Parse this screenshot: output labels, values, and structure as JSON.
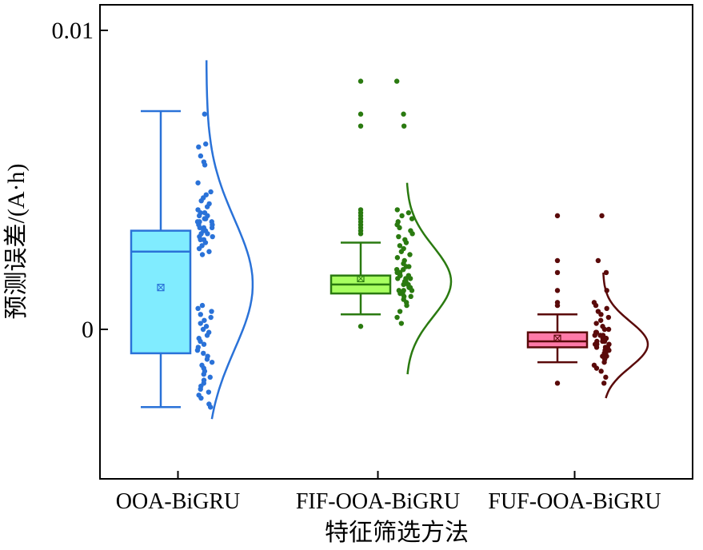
{
  "chart_data": {
    "type": "box",
    "xlabel": "特征筛选方法",
    "ylabel": "预测误差/(A·h)",
    "ylim": [
      -0.005,
      0.011
    ],
    "yticks": [
      {
        "value": 0.01,
        "label": "0.01"
      },
      {
        "value": 0,
        "label": "0"
      }
    ],
    "grid": false,
    "legend": "none",
    "categories": [
      "OOA-BiGRU",
      "FIF-OOA-BiGRU",
      "FUF-OOA-BiGRU"
    ],
    "series": [
      {
        "category": "OOA-BiGRU",
        "box_fill": "#80ecff",
        "line_color": "#2a72d8",
        "whisker_low": -0.0026,
        "q1": -0.0008,
        "median": 0.0026,
        "q3": 0.0033,
        "whisker_high": 0.0073,
        "mean": 0.0014,
        "outliers": [],
        "density_range": [
          -0.003,
          0.009
        ],
        "density_center": 0.0015,
        "points": [
          0.0072,
          0.0062,
          0.0061,
          0.0058,
          0.0056,
          0.0055,
          0.0049,
          0.0046,
          0.0045,
          0.0044,
          0.0043,
          0.0042,
          0.0041,
          0.004,
          0.0039,
          0.0039,
          0.0038,
          0.0038,
          0.0037,
          0.0037,
          0.0036,
          0.0036,
          0.0036,
          0.0035,
          0.0035,
          0.0034,
          0.0034,
          0.0034,
          0.0033,
          0.0033,
          0.0032,
          0.0032,
          0.0031,
          0.0031,
          0.003,
          0.003,
          0.0029,
          0.0028,
          0.0027,
          0.0026,
          0.0025,
          0.0008,
          0.0007,
          0.0006,
          0.0005,
          0.0004,
          0.0003,
          0.0002,
          0.0001,
          0.0,
          -0.0001,
          -0.0002,
          -0.0003,
          -0.0004,
          -0.0005,
          -0.0006,
          -0.0007,
          -0.0008,
          -0.0009,
          -0.001,
          -0.0011,
          -0.0012,
          -0.0013,
          -0.0014,
          -0.0015,
          -0.0016,
          -0.0017,
          -0.0018,
          -0.0019,
          -0.002,
          -0.0021,
          -0.0022,
          -0.0023,
          -0.0025,
          -0.0026
        ]
      },
      {
        "category": "FIF-OOA-BiGRU",
        "box_fill": "#a8ff60",
        "line_color": "#2a7a10",
        "whisker_low": 0.0005,
        "q1": 0.0012,
        "median": 0.0015,
        "q3": 0.0018,
        "whisker_high": 0.0029,
        "mean": 0.0017,
        "outliers": [
          0.004,
          0.0039,
          0.0038,
          0.0037,
          0.0036,
          0.0035,
          0.0034,
          0.0033,
          0.0032,
          0.0068,
          0.0072,
          0.0083,
          0.0001
        ],
        "density_range": [
          -0.0015,
          0.0049
        ],
        "density_center": 0.0016,
        "points": [
          0.0083,
          0.0072,
          0.0068,
          0.004,
          0.0039,
          0.0038,
          0.0037,
          0.0036,
          0.0035,
          0.0034,
          0.0033,
          0.0032,
          0.0031,
          0.003,
          0.0029,
          0.0028,
          0.0027,
          0.0026,
          0.0025,
          0.0024,
          0.0023,
          0.0022,
          0.0021,
          0.0021,
          0.002,
          0.002,
          0.0019,
          0.0019,
          0.0019,
          0.0018,
          0.0018,
          0.0018,
          0.0017,
          0.0017,
          0.0017,
          0.0016,
          0.0016,
          0.0016,
          0.0015,
          0.0015,
          0.0015,
          0.0014,
          0.0014,
          0.0014,
          0.0013,
          0.0013,
          0.0013,
          0.0012,
          0.0012,
          0.0011,
          0.0011,
          0.001,
          0.0009,
          0.0008,
          0.0006,
          0.0004,
          0.0002
        ]
      },
      {
        "category": "FUF-OOA-BiGRU",
        "box_fill": "#ff7aa8",
        "line_color": "#5a0a0a",
        "whisker_low": -0.0011,
        "q1": -0.0006,
        "median": -0.0004,
        "q3": -0.0001,
        "whisker_high": 0.0005,
        "mean": -0.0003,
        "outliers": [
          0.0038,
          0.0023,
          0.0019,
          0.0013,
          0.0009,
          0.0008,
          -0.0018
        ],
        "density_range": [
          -0.0023,
          0.0019
        ],
        "density_center": -0.0005,
        "points": [
          0.0038,
          0.0023,
          0.0019,
          0.0013,
          0.0009,
          0.0008,
          0.0007,
          0.0006,
          0.0005,
          0.0004,
          0.0003,
          0.0002,
          0.0001,
          0.0,
          0.0,
          -0.0001,
          -0.0001,
          -0.0002,
          -0.0002,
          -0.0002,
          -0.0003,
          -0.0003,
          -0.0003,
          -0.0004,
          -0.0004,
          -0.0004,
          -0.0005,
          -0.0005,
          -0.0005,
          -0.0006,
          -0.0006,
          -0.0006,
          -0.0007,
          -0.0007,
          -0.0008,
          -0.0008,
          -0.0009,
          -0.0009,
          -0.001,
          -0.0011,
          -0.0012,
          -0.0013,
          -0.0014,
          -0.0016,
          -0.0018
        ]
      }
    ]
  }
}
